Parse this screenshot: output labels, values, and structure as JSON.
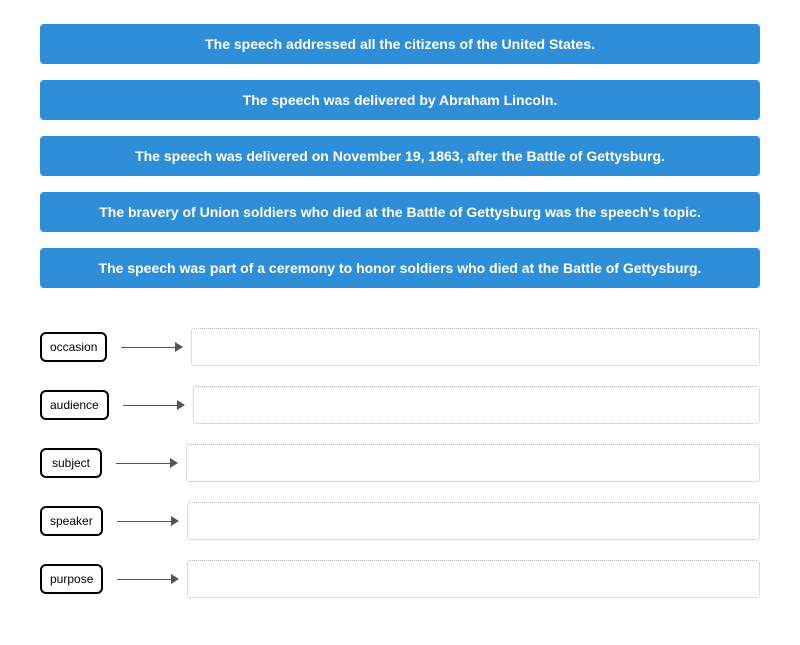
{
  "colors": {
    "card_bg": "#2e8ed7",
    "card_text": "#ffffff",
    "label_border": "#000000",
    "arrow_color": "#555555",
    "dropzone_border": "#b9b9b9",
    "page_bg": "#ffffff"
  },
  "cards": [
    "The speech addressed all the citizens of the United States.",
    "The speech was delivered by Abraham Lincoln.",
    "The speech was delivered on November 19, 1863, after the Battle of Gettysburg.",
    "The bravery of Union soldiers who died at the Battle of Gettysburg was the speech's topic.",
    "The speech was part of a ceremony to honor soldiers who died at the Battle of Gettysburg."
  ],
  "rows": [
    {
      "label": "occasion"
    },
    {
      "label": "audience"
    },
    {
      "label": "subject"
    },
    {
      "label": "speaker"
    },
    {
      "label": "purpose"
    }
  ]
}
